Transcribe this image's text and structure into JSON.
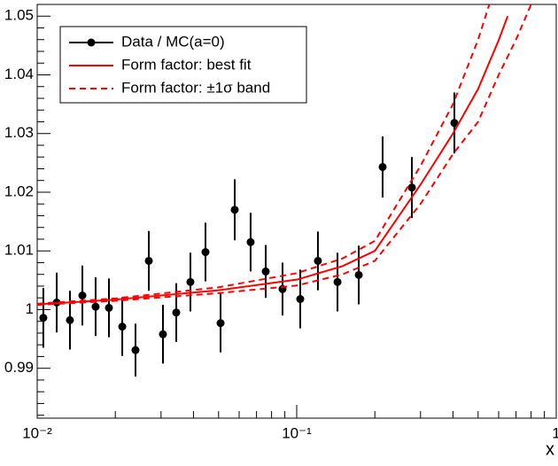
{
  "chart_data": {
    "type": "scatter",
    "x_label": "x",
    "xscale": "log",
    "xlim": [
      0.01,
      1
    ],
    "xticks": [
      {
        "value": 0.01,
        "label": "10⁻²"
      },
      {
        "value": 0.1,
        "label": "10⁻¹"
      },
      1
    ],
    "xminorticks": [
      0.02,
      0.03,
      0.04,
      0.05,
      0.06,
      0.07,
      0.08,
      0.09,
      0.2,
      0.3,
      0.4,
      0.5,
      0.6,
      0.7,
      0.8,
      0.9
    ],
    "ylim": [
      0.9815,
      1.052
    ],
    "yticks": [
      0.99,
      1,
      1.01,
      1.02,
      1.03,
      1.04,
      1.05
    ],
    "yminorticks": [
      0.982,
      0.984,
      0.986,
      0.988,
      0.992,
      0.994,
      0.996,
      0.998,
      1.002,
      1.004,
      1.006,
      1.008,
      1.012,
      1.014,
      1.016,
      1.018,
      1.022,
      1.024,
      1.026,
      1.028,
      1.032,
      1.034,
      1.036,
      1.038,
      1.042,
      1.044,
      1.046,
      1.048
    ],
    "legend": "upper left",
    "series": [
      {
        "name": "Data / MC(a=0)",
        "style": "points",
        "color": "#000000",
        "x": [
          0.01056,
          0.01189,
          0.01337,
          0.01493,
          0.01679,
          0.0189,
          0.02127,
          0.02392,
          0.02692,
          0.03052,
          0.03435,
          0.03894,
          0.04451,
          0.05088,
          0.05769,
          0.06643,
          0.07595,
          0.08817,
          0.1032,
          0.1207,
          0.1436,
          0.1734,
          0.2143,
          0.2778,
          0.4051
        ],
        "values": [
          0.9986,
          1.0012,
          0.9982,
          1.0024,
          1.0005,
          1.0003,
          0.9971,
          0.9931,
          1.0083,
          0.9958,
          0.9995,
          1.0047,
          1.0098,
          0.9977,
          1.017,
          1.0115,
          1.0065,
          1.0035,
          1.0018,
          1.0083,
          1.0047,
          1.0059,
          1.0243,
          1.0208,
          1.0318
        ],
        "errors": [
          0.0051,
          0.0051,
          0.005,
          0.0051,
          0.005,
          0.005,
          0.005,
          0.0045,
          0.0051,
          0.005,
          0.005,
          0.005,
          0.005,
          0.005,
          0.0052,
          0.005,
          0.0045,
          0.0045,
          0.005,
          0.005,
          0.005,
          0.005,
          0.0052,
          0.0052,
          0.0052
        ]
      },
      {
        "name": "Form factor: best fit",
        "style": "line",
        "color": "#ff0000",
        "x": [
          0.01,
          0.02,
          0.05,
          0.1,
          0.15,
          0.2,
          0.3,
          0.4,
          0.5,
          0.6,
          0.65
        ],
        "values": [
          1.0009,
          1.0017,
          1.0033,
          1.0051,
          1.0074,
          1.01,
          1.0213,
          1.03,
          1.0376,
          1.0459,
          1.05
        ]
      },
      {
        "name": "Form factor: ±1σ band",
        "style": "band",
        "color": "#ff0000",
        "x": [
          0.01,
          0.02,
          0.05,
          0.1,
          0.15,
          0.2,
          0.3,
          0.4,
          0.5,
          0.6,
          0.7,
          0.8
        ],
        "upper": [
          1.001,
          1.0019,
          1.0038,
          1.0062,
          1.0087,
          1.0117,
          1.0245,
          1.035,
          1.046,
          1.057,
          null,
          null
        ],
        "lower": [
          1.0008,
          1.0015,
          1.0028,
          1.0041,
          1.006,
          1.0083,
          1.018,
          1.0265,
          1.032,
          1.04,
          1.046,
          1.052
        ]
      }
    ]
  }
}
